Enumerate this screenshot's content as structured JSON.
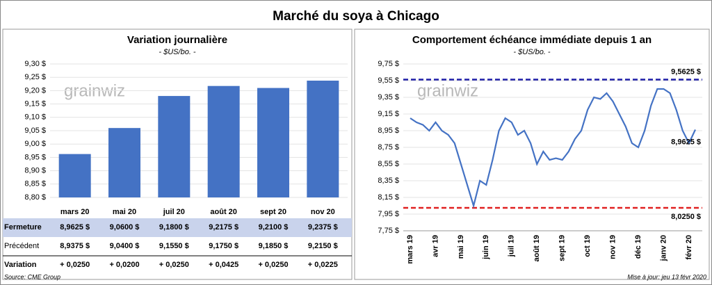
{
  "title": "Marché du soya à Chicago",
  "chart_data": [
    {
      "type": "bar",
      "title": "Variation journalière",
      "subtitle": "- $US/bo. -",
      "watermark": "grainwiz",
      "color": "#4472c4",
      "grid": true,
      "categories": [
        "mars 20",
        "mai 20",
        "juil 20",
        "août 20",
        "sept 20",
        "nov 20"
      ],
      "values": [
        8.9625,
        9.06,
        9.18,
        9.2175,
        9.21,
        9.2375
      ],
      "ylim": [
        8.8,
        9.3
      ],
      "yticks": [
        {
          "value": 8.8,
          "label": "8,80 $"
        },
        {
          "value": 8.85,
          "label": "8,85 $"
        },
        {
          "value": 8.9,
          "label": "8,90 $"
        },
        {
          "value": 8.95,
          "label": "8,95 $"
        },
        {
          "value": 9.0,
          "label": "9,00 $"
        },
        {
          "value": 9.05,
          "label": "9,05 $"
        },
        {
          "value": 9.1,
          "label": "9,10 $"
        },
        {
          "value": 9.15,
          "label": "9,15 $"
        },
        {
          "value": 9.2,
          "label": "9,20 $"
        },
        {
          "value": 9.25,
          "label": "9,25 $"
        },
        {
          "value": 9.3,
          "label": "9,30 $"
        }
      ]
    },
    {
      "type": "line",
      "title": "Comportement  échéance immédiate depuis 1 an",
      "subtitle": "- $US/bo. -",
      "watermark": "grainwiz",
      "grid": true,
      "categories": [
        "mars 19",
        null,
        null,
        null,
        "avr 19",
        null,
        null,
        null,
        "mai 19",
        null,
        null,
        null,
        "juin 19",
        null,
        null,
        null,
        "juil 19",
        null,
        null,
        null,
        "août 19",
        null,
        null,
        null,
        "sept 19",
        null,
        null,
        null,
        "oct 19",
        null,
        null,
        null,
        "nov 19",
        null,
        null,
        null,
        "déc 19",
        null,
        null,
        null,
        "janv 20",
        null,
        null,
        null,
        "févr 20",
        null
      ],
      "series": [
        {
          "color": "#4472c4",
          "values": [
            9.1,
            9.05,
            9.02,
            8.95,
            9.05,
            8.95,
            8.9,
            8.8,
            8.55,
            8.3,
            8.05,
            8.35,
            8.3,
            8.6,
            8.95,
            9.1,
            9.05,
            8.9,
            8.95,
            8.8,
            8.55,
            8.7,
            8.6,
            8.62,
            8.6,
            8.7,
            8.85,
            8.95,
            9.2,
            9.35,
            9.33,
            9.4,
            9.3,
            9.15,
            9.0,
            8.8,
            8.75,
            8.95,
            9.25,
            9.45,
            9.45,
            9.4,
            9.2,
            8.95,
            8.8,
            8.9625
          ],
          "value_labels": [
            null,
            null,
            null,
            null,
            null,
            null,
            null,
            null,
            null,
            null,
            null,
            null,
            null,
            null,
            null,
            null,
            null,
            null,
            null,
            null,
            null,
            null,
            null,
            null,
            null,
            null,
            null,
            null,
            null,
            null,
            null,
            null,
            null,
            null,
            null,
            null,
            null,
            null,
            null,
            null,
            null,
            null,
            null,
            null,
            null,
            "8,9625 $"
          ]
        }
      ],
      "reference_lines": [
        {
          "value": 9.5625,
          "label": "9,5625 $",
          "color": "#1f1fa8"
        },
        {
          "value": 8.025,
          "label": "8,0250 $",
          "color": "#e02020"
        }
      ],
      "ylim": [
        7.75,
        9.75
      ],
      "yticks": [
        {
          "value": 7.75,
          "label": "7,75 $"
        },
        {
          "value": 7.95,
          "label": "7,95 $"
        },
        {
          "value": 8.15,
          "label": "8,15 $"
        },
        {
          "value": 8.35,
          "label": "8,35 $"
        },
        {
          "value": 8.55,
          "label": "8,55 $"
        },
        {
          "value": 8.75,
          "label": "8,75 $"
        },
        {
          "value": 8.95,
          "label": "8,95 $"
        },
        {
          "value": 9.15,
          "label": "9,15 $"
        },
        {
          "value": 9.35,
          "label": "9,35 $"
        },
        {
          "value": 9.55,
          "label": "9,55 $"
        },
        {
          "value": 9.75,
          "label": "9,75 $"
        }
      ]
    }
  ],
  "table": {
    "rows": [
      {
        "label": "Fermeture",
        "cells": [
          "8,9625  $",
          "9,0600  $",
          "9,1800  $",
          "9,2175  $",
          "9,2100  $",
          "9,2375  $"
        ]
      },
      {
        "label": "Précédent",
        "cells": [
          "8,9375  $",
          "9,0400  $",
          "9,1550  $",
          "9,1750  $",
          "9,1850  $",
          "9,2150  $"
        ]
      },
      {
        "label": "Variation",
        "cells": [
          "+ 0,0250",
          "+ 0,0200",
          "+ 0,0250",
          "+ 0,0425",
          "+ 0,0250",
          "+ 0,0225"
        ]
      }
    ]
  },
  "footer": {
    "source": "Source: CME Group",
    "updated": "Mise à jour: jeu 13 févr 2020"
  }
}
